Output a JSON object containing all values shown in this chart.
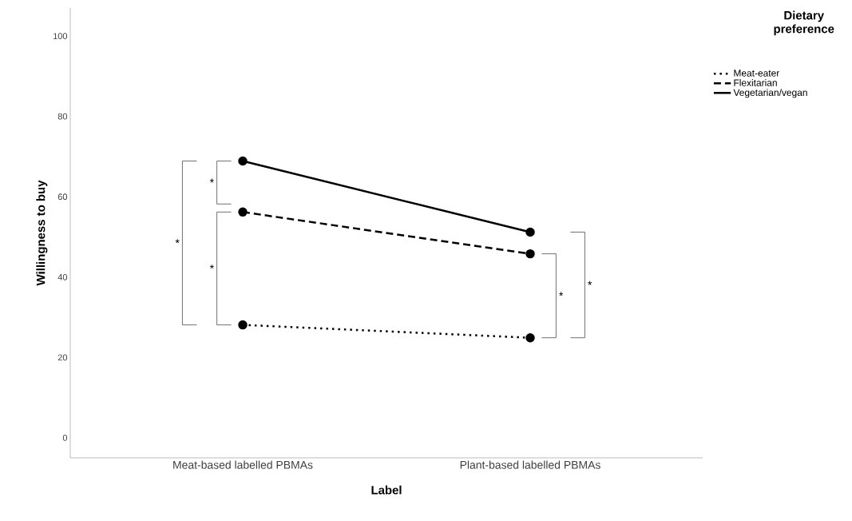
{
  "chart_data": {
    "type": "line",
    "xlabel": "Label",
    "ylabel": "Willingness to buy",
    "legend_title": "Dietary preference",
    "categories": [
      "Meat-based labelled PBMAs",
      "Plant-based labelled PBMAs"
    ],
    "series": [
      {
        "name": "Meat-eater",
        "color": "#000000",
        "line_style": "dotted",
        "values": [
          28.1,
          24.9
        ]
      },
      {
        "name": "Flexitarian",
        "color": "#000000",
        "line_style": "dashed",
        "values": [
          56.2,
          45.8
        ]
      },
      {
        "name": "Vegetarian/vegan",
        "color": "#000000",
        "line_style": "solid",
        "values": [
          68.9,
          51.2
        ]
      }
    ],
    "ylim": [
      -5,
      107
    ],
    "yticks": [
      0,
      20,
      40,
      60,
      80,
      100
    ],
    "marker": "circle",
    "legend": "top right",
    "grid": false,
    "annotations": [
      "*",
      "*",
      "*",
      "*",
      "*"
    ]
  }
}
